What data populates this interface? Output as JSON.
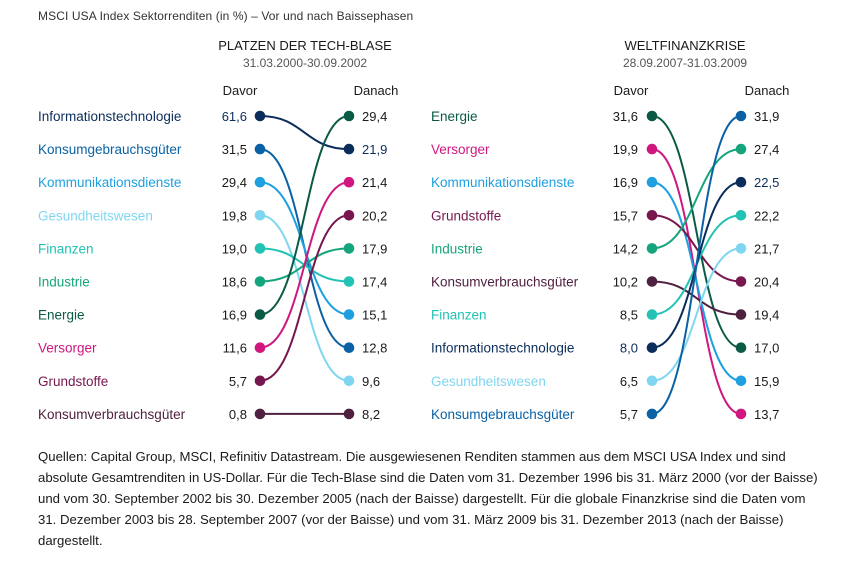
{
  "title": "MSCI USA Index Sektorrenditen (in %) – Vor und nach Baissephasen",
  "footer": "Quellen: Capital Group, MSCI, Refinitiv Datastream. Die ausgewiesenen Renditen stammen aus dem MSCI USA Index und sind absolute Gesamtrenditen in US-Dollar. Für die Tech-Blase sind die Daten vom 31. Dezember 1996 bis 31. März 2000 (vor der Baisse) und vom 30. September 2002 bis 30. Dezember 2005 (nach der Baisse) dargestellt. Für die globale Finanzkrise sind die Daten vom 31. Dezember 2003 bis 28. September 2007 (vor der Baisse) und vom 31. März 2009 bis 31. Dezember 2013 (nach der Baisse) dargestellt.",
  "colors": {
    "Informationstechnologie": "#0b2d5b",
    "Konsumgebrauchsgüter": "#0a62a5",
    "Kommunikationsdienste": "#1d9fe0",
    "Gesundheitswesen": "#7fd6f0",
    "Finanzen": "#22c2b4",
    "Industrie": "#15a57c",
    "Energie": "#0a5a46",
    "Versorger": "#d0177f",
    "Grundstoffe": "#76174e",
    "Konsumverbrauchsgüter": "#4e2140"
  },
  "chart_data": [
    {
      "type": "slope",
      "title": "PLATZEN DER TECH-BLASE",
      "subtitle": "31.03.2000-30.09.2002",
      "left_label": "Davor",
      "right_label": "Danach",
      "unit": "%",
      "series": [
        {
          "name": "Informationstechnologie",
          "before": "61,6",
          "after": "21,9"
        },
        {
          "name": "Konsumgebrauchsgüter",
          "before": "31,5",
          "after": "12,8"
        },
        {
          "name": "Kommunikationsdienste",
          "before": "29,4",
          "after": "15,1"
        },
        {
          "name": "Gesundheitswesen",
          "before": "19,8",
          "after": "9,6"
        },
        {
          "name": "Finanzen",
          "before": "19,0",
          "after": "17,4"
        },
        {
          "name": "Industrie",
          "before": "18,6",
          "after": "17,9"
        },
        {
          "name": "Energie",
          "before": "16,9",
          "after": "29,4"
        },
        {
          "name": "Versorger",
          "before": "11,6",
          "after": "21,4"
        },
        {
          "name": "Grundstoffe",
          "before": "5,7",
          "after": "20,2"
        },
        {
          "name": "Konsumverbrauchsgüter",
          "before": "0,8",
          "after": "8,2"
        }
      ]
    },
    {
      "type": "slope",
      "title": "WELTFINANZKRISE",
      "subtitle": "28.09.2007-31.03.2009",
      "left_label": "Davor",
      "right_label": "Danach",
      "unit": "%",
      "series": [
        {
          "name": "Energie",
          "before": "31,6",
          "after": "17,0"
        },
        {
          "name": "Versorger",
          "before": "19,9",
          "after": "13,7"
        },
        {
          "name": "Kommunikationsdienste",
          "before": "16,9",
          "after": "15,9"
        },
        {
          "name": "Grundstoffe",
          "before": "15,7",
          "after": "20,4"
        },
        {
          "name": "Industrie",
          "before": "14,2",
          "after": "27,4"
        },
        {
          "name": "Konsumverbrauchsgüter",
          "before": "10,2",
          "after": "19,4"
        },
        {
          "name": "Finanzen",
          "before": "8,5",
          "after": "22,2"
        },
        {
          "name": "Informationstechnologie",
          "before": "8,0",
          "after": "22,5"
        },
        {
          "name": "Gesundheitswesen",
          "before": "6,5",
          "after": "21,7"
        },
        {
          "name": "Konsumgebrauchsgüter",
          "before": "5,7",
          "after": "31,9"
        }
      ]
    }
  ]
}
